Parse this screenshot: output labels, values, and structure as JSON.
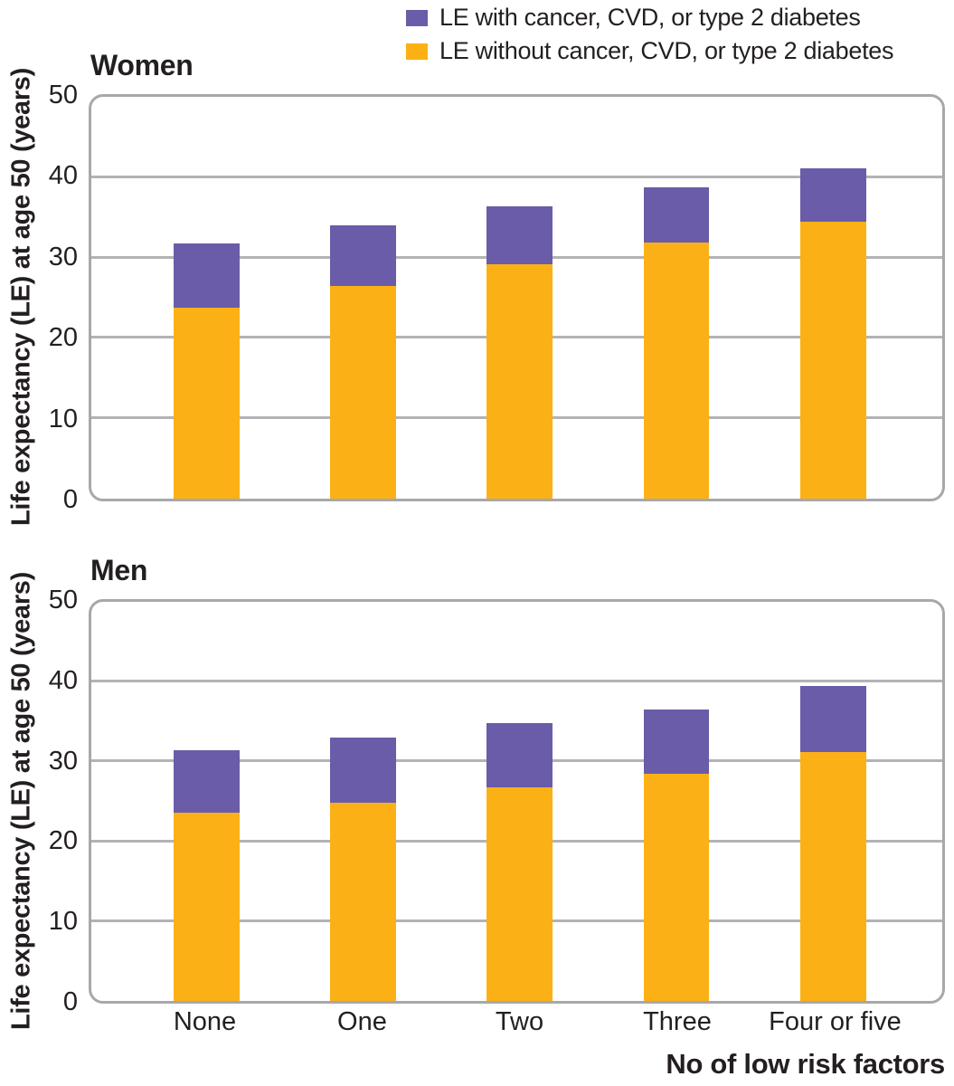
{
  "legend": {
    "position": "top-right",
    "items": [
      {
        "label": "LE with cancer, CVD, or type 2 diabetes",
        "color": "#6A5CA8"
      },
      {
        "label": "LE without cancer, CVD, or type 2 diabetes",
        "color": "#FBB116"
      }
    ]
  },
  "y_axis": {
    "label": "Life expectancy (LE) at age 50 (years)",
    "ticks": [
      "50",
      "40",
      "30",
      "20",
      "10",
      "0"
    ],
    "min": 0,
    "max": 50
  },
  "x_axis": {
    "title": "No of low risk factors",
    "categories": [
      "None",
      "One",
      "Two",
      "Three",
      "Four or five"
    ]
  },
  "colors": {
    "with_disease": "#6A5CA8",
    "without_disease": "#FBB116",
    "gridline": "#B3B3B6",
    "frame": "#A6A8AB",
    "text": "#231F20"
  },
  "chart_data": [
    {
      "type": "bar",
      "stacked": true,
      "title": "Women",
      "categories": [
        "None",
        "One",
        "Two",
        "Three",
        "Four or five"
      ],
      "series": [
        {
          "name": "LE without cancer, CVD, or type 2 diabetes",
          "color": "#FBB116",
          "values": [
            23.7,
            26.4,
            29.1,
            31.8,
            34.4
          ]
        },
        {
          "name": "LE with cancer, CVD, or type 2 diabetes",
          "color": "#6A5CA8",
          "values": [
            8.0,
            7.5,
            7.2,
            6.9,
            6.7
          ]
        }
      ],
      "totals": [
        31.7,
        33.9,
        36.3,
        38.7,
        41.1
      ],
      "xlabel": "No of low risk factors",
      "ylabel": "Life expectancy (LE) at age 50 (years)",
      "ylim": [
        0,
        50
      ],
      "grid": true,
      "legend_position": "top-right"
    },
    {
      "type": "bar",
      "stacked": true,
      "title": "Men",
      "categories": [
        "None",
        "One",
        "Two",
        "Three",
        "Four or five"
      ],
      "series": [
        {
          "name": "LE without cancer, CVD, or type 2 diabetes",
          "color": "#FBB116",
          "values": [
            23.5,
            24.8,
            26.7,
            28.4,
            31.1
          ]
        },
        {
          "name": "LE with cancer, CVD, or type 2 diabetes",
          "color": "#6A5CA8",
          "values": [
            7.8,
            8.1,
            8.1,
            8.1,
            8.3
          ]
        }
      ],
      "totals": [
        31.3,
        32.9,
        34.8,
        36.5,
        39.4
      ],
      "xlabel": "No of low risk factors",
      "ylabel": "Life expectancy (LE) at age 50 (years)",
      "ylim": [
        0,
        50
      ],
      "grid": true,
      "legend_position": "top-right"
    }
  ]
}
